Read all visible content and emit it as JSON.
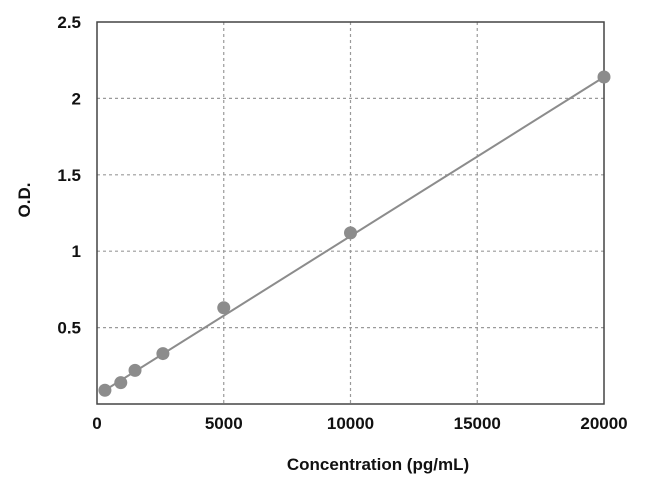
{
  "chart_data": {
    "type": "scatter",
    "title": "",
    "xlabel": "Concentration (pg/mL)",
    "ylabel": "O.D.",
    "xlim": [
      0,
      20000
    ],
    "ylim": [
      0,
      2.5
    ],
    "x_ticks": [
      "0",
      "5000",
      "10000",
      "15000",
      "20000"
    ],
    "y_ticks": [
      "0.5",
      "1",
      "1.5",
      "2",
      "2.5"
    ],
    "x_tick_values": [
      0,
      5000,
      10000,
      15000,
      20000
    ],
    "y_tick_values": [
      0.5,
      1,
      1.5,
      2,
      2.5
    ],
    "grid": true,
    "legend": "none",
    "series": [
      {
        "x": [
          312.5,
          937.5,
          1500,
          2600,
          5000,
          10000,
          20000
        ],
        "y": [
          0.09,
          0.14,
          0.22,
          0.33,
          0.63,
          1.12,
          2.14
        ]
      }
    ],
    "fit_line": {
      "type": "linear",
      "x": [
        312.5,
        20000
      ],
      "y": [
        0.09,
        2.14
      ]
    },
    "colors": {
      "points": "#8c8c8c",
      "line": "#8c8c8c",
      "grid": "#9a9a9a",
      "frame": "#444444"
    }
  }
}
